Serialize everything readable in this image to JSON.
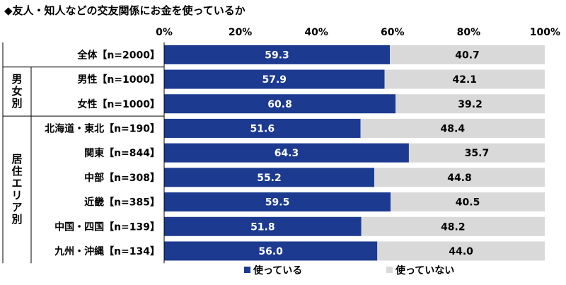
{
  "chart_data": {
    "type": "bar",
    "orientation": "horizontal",
    "stacked": true,
    "title": "◆友人・知人などの交友関係にお金を使っているか",
    "categories": [
      "全体【n=2000】",
      "男性【n=1000】",
      "女性【n=1000】",
      "北海道・東北【n=190】",
      "関東【n=844】",
      "中部【n=308】",
      "近畿【n=385】",
      "中国・四国【n=139】",
      "九州・沖縄【n=134】"
    ],
    "series": [
      {
        "name": "使っている",
        "color": "#1c3a8f",
        "values": [
          59.3,
          57.9,
          60.8,
          51.6,
          64.3,
          55.2,
          59.5,
          51.8,
          56.0
        ],
        "labels": [
          "59.3",
          "57.9",
          "60.8",
          "51.6",
          "64.3",
          "55.2",
          "59.5",
          "51.8",
          "56.0"
        ]
      },
      {
        "name": "使っていない",
        "color": "#d9d9d9",
        "values": [
          40.7,
          42.1,
          39.2,
          48.4,
          35.7,
          44.8,
          40.5,
          48.2,
          44.0
        ],
        "labels": [
          "40.7",
          "42.1",
          "39.2",
          "48.4",
          "35.7",
          "44.8",
          "40.5",
          "48.2",
          "44.0"
        ]
      }
    ],
    "xlim": [
      0,
      100
    ],
    "xticks": [
      "0%",
      "20%",
      "40%",
      "60%",
      "80%",
      "100%"
    ],
    "groups": [
      {
        "label": "男\n女\n別",
        "first": 1,
        "last": 2
      },
      {
        "label": "居\n住\nエ\nリ\nア\n別",
        "first": 3,
        "last": 8
      }
    ],
    "legend_position": "bottom",
    "grid": false
  }
}
